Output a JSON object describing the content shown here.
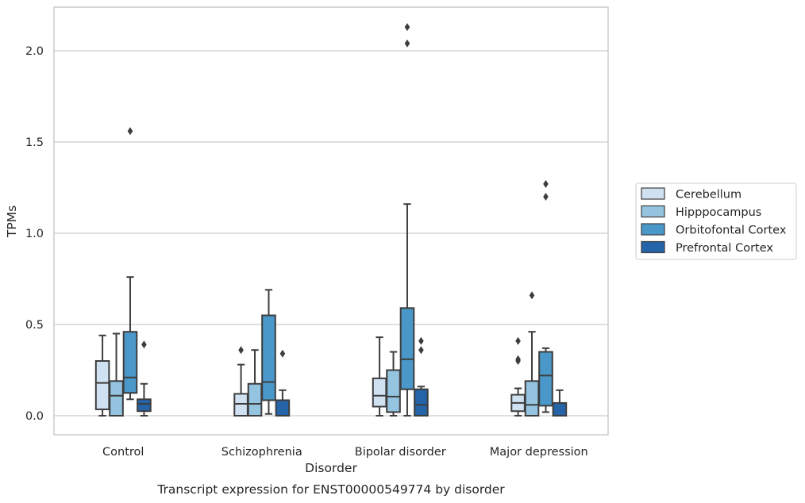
{
  "chart_data": {
    "type": "boxplot",
    "title": "",
    "caption": "Transcript expression for ENST00000549774 by disorder",
    "xlabel": "Disorder",
    "ylabel": "TPMs",
    "ylim": [
      -0.1,
      2.25
    ],
    "yticks": [
      0.0,
      0.5,
      1.0,
      1.5,
      2.0
    ],
    "ytick_labels": [
      "0.0",
      "0.5",
      "1.0",
      "1.5",
      "2.0"
    ],
    "grid": "horizontal",
    "legend_position": "right-outside",
    "categories": [
      "Control",
      "Schizophrenia",
      "Bipolar disorder",
      "Major depression"
    ],
    "series": [
      {
        "name": "Cerebellum",
        "color": "#d0e1f2",
        "boxes": [
          {
            "whislo": 0.0,
            "q1": 0.035,
            "med": 0.18,
            "q3": 0.3,
            "whishi": 0.44,
            "fliers": []
          },
          {
            "whislo": 0.0,
            "q1": 0.0,
            "med": 0.065,
            "q3": 0.12,
            "whishi": 0.28,
            "fliers": [
              0.36
            ]
          },
          {
            "whislo": 0.0,
            "q1": 0.05,
            "med": 0.11,
            "q3": 0.205,
            "whishi": 0.43,
            "fliers": []
          },
          {
            "whislo": 0.0,
            "q1": 0.025,
            "med": 0.07,
            "q3": 0.115,
            "whishi": 0.15,
            "fliers": [
              0.3,
              0.31,
              0.41
            ]
          }
        ]
      },
      {
        "name": "Hipppocampus",
        "color": "#94c4df",
        "boxes": [
          {
            "whislo": 0.0,
            "q1": 0.0,
            "med": 0.11,
            "q3": 0.19,
            "whishi": 0.45,
            "fliers": []
          },
          {
            "whislo": 0.0,
            "q1": 0.0,
            "med": 0.065,
            "q3": 0.175,
            "whishi": 0.36,
            "fliers": []
          },
          {
            "whislo": 0.0,
            "q1": 0.02,
            "med": 0.105,
            "q3": 0.25,
            "whishi": 0.35,
            "fliers": []
          },
          {
            "whislo": 0.0,
            "q1": 0.0,
            "med": 0.06,
            "q3": 0.19,
            "whishi": 0.46,
            "fliers": [
              0.66
            ]
          }
        ]
      },
      {
        "name": "Orbitofontal Cortex",
        "color": "#4a98c9",
        "boxes": [
          {
            "whislo": 0.09,
            "q1": 0.125,
            "med": 0.21,
            "q3": 0.46,
            "whishi": 0.76,
            "fliers": [
              1.56
            ]
          },
          {
            "whislo": 0.01,
            "q1": 0.085,
            "med": 0.185,
            "q3": 0.55,
            "whishi": 0.69,
            "fliers": []
          },
          {
            "whislo": 0.0,
            "q1": 0.145,
            "med": 0.31,
            "q3": 0.59,
            "whishi": 1.16,
            "fliers": [
              2.04,
              2.13
            ]
          },
          {
            "whislo": 0.02,
            "q1": 0.055,
            "med": 0.22,
            "q3": 0.35,
            "whishi": 0.37,
            "fliers": [
              1.2,
              1.27
            ]
          }
        ]
      },
      {
        "name": "Prefrontal Cortex",
        "color": "#2564a8",
        "boxes": [
          {
            "whislo": 0.0,
            "q1": 0.025,
            "med": 0.065,
            "q3": 0.09,
            "whishi": 0.175,
            "fliers": [
              0.39
            ]
          },
          {
            "whislo": 0.0,
            "q1": 0.0,
            "med": 0.0,
            "q3": 0.085,
            "whishi": 0.14,
            "fliers": [
              0.34
            ]
          },
          {
            "whislo": 0.0,
            "q1": 0.0,
            "med": 0.06,
            "q3": 0.145,
            "whishi": 0.16,
            "fliers": [
              0.36,
              0.41
            ]
          },
          {
            "whislo": 0.0,
            "q1": 0.0,
            "med": 0.0,
            "q3": 0.07,
            "whishi": 0.14,
            "fliers": []
          }
        ]
      }
    ]
  }
}
